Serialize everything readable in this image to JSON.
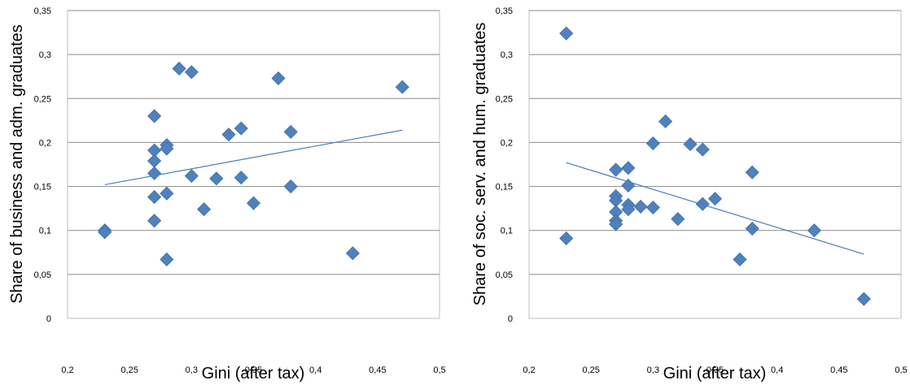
{
  "chart_data": [
    {
      "type": "scatter",
      "xlabel": "Gini (after tax)",
      "ylabel": "Share of business and adm. graduates",
      "xlim": [
        0.2,
        0.5
      ],
      "ylim": [
        0,
        0.35
      ],
      "x_ticks": [
        "0,2",
        "0,25",
        "0,3",
        "0,35",
        "0,4",
        "0,45",
        "0,5"
      ],
      "y_ticks": [
        "0",
        "0,05",
        "0,1",
        "0,15",
        "0,2",
        "0,25",
        "0,3",
        "0,35"
      ],
      "grid": "horizontal",
      "marker_color": "#4f81bd",
      "trendline": {
        "x": [
          0.23,
          0.47
        ],
        "y": [
          0.152,
          0.214
        ]
      },
      "points": [
        {
          "x": 0.23,
          "y": 0.1
        },
        {
          "x": 0.23,
          "y": 0.098
        },
        {
          "x": 0.27,
          "y": 0.23
        },
        {
          "x": 0.27,
          "y": 0.191
        },
        {
          "x": 0.27,
          "y": 0.179
        },
        {
          "x": 0.27,
          "y": 0.165
        },
        {
          "x": 0.27,
          "y": 0.138
        },
        {
          "x": 0.27,
          "y": 0.111
        },
        {
          "x": 0.28,
          "y": 0.197
        },
        {
          "x": 0.28,
          "y": 0.193
        },
        {
          "x": 0.28,
          "y": 0.142
        },
        {
          "x": 0.28,
          "y": 0.067
        },
        {
          "x": 0.29,
          "y": 0.284
        },
        {
          "x": 0.3,
          "y": 0.28
        },
        {
          "x": 0.3,
          "y": 0.162
        },
        {
          "x": 0.31,
          "y": 0.124
        },
        {
          "x": 0.32,
          "y": 0.159
        },
        {
          "x": 0.33,
          "y": 0.209
        },
        {
          "x": 0.34,
          "y": 0.216
        },
        {
          "x": 0.34,
          "y": 0.16
        },
        {
          "x": 0.35,
          "y": 0.131
        },
        {
          "x": 0.37,
          "y": 0.273
        },
        {
          "x": 0.38,
          "y": 0.212
        },
        {
          "x": 0.38,
          "y": 0.15
        },
        {
          "x": 0.43,
          "y": 0.074
        },
        {
          "x": 0.47,
          "y": 0.263
        }
      ]
    },
    {
      "type": "scatter",
      "xlabel": "Gini (after tax)",
      "ylabel": "Share of soc. serv. and hum. graduates",
      "xlim": [
        0.2,
        0.5
      ],
      "ylim": [
        0,
        0.35
      ],
      "x_ticks": [
        "0,2",
        "0,25",
        "0,3",
        "0,35",
        "0,4",
        "0,45",
        "0,5"
      ],
      "y_ticks": [
        "0",
        "0,05",
        "0,1",
        "0,15",
        "0,2",
        "0,25",
        "0,3",
        "0,35"
      ],
      "grid": "horizontal",
      "marker_color": "#4f81bd",
      "trendline": {
        "x": [
          0.23,
          0.47
        ],
        "y": [
          0.177,
          0.073
        ]
      },
      "points": [
        {
          "x": 0.23,
          "y": 0.324
        },
        {
          "x": 0.23,
          "y": 0.091
        },
        {
          "x": 0.27,
          "y": 0.169
        },
        {
          "x": 0.27,
          "y": 0.139
        },
        {
          "x": 0.27,
          "y": 0.134
        },
        {
          "x": 0.27,
          "y": 0.121
        },
        {
          "x": 0.27,
          "y": 0.111
        },
        {
          "x": 0.27,
          "y": 0.107
        },
        {
          "x": 0.28,
          "y": 0.171
        },
        {
          "x": 0.28,
          "y": 0.151
        },
        {
          "x": 0.28,
          "y": 0.129
        },
        {
          "x": 0.28,
          "y": 0.124
        },
        {
          "x": 0.29,
          "y": 0.127
        },
        {
          "x": 0.3,
          "y": 0.126
        },
        {
          "x": 0.3,
          "y": 0.199
        },
        {
          "x": 0.31,
          "y": 0.224
        },
        {
          "x": 0.32,
          "y": 0.113
        },
        {
          "x": 0.33,
          "y": 0.198
        },
        {
          "x": 0.34,
          "y": 0.192
        },
        {
          "x": 0.34,
          "y": 0.13
        },
        {
          "x": 0.35,
          "y": 0.136
        },
        {
          "x": 0.37,
          "y": 0.067
        },
        {
          "x": 0.38,
          "y": 0.166
        },
        {
          "x": 0.38,
          "y": 0.102
        },
        {
          "x": 0.43,
          "y": 0.1
        },
        {
          "x": 0.47,
          "y": 0.022
        }
      ]
    }
  ]
}
